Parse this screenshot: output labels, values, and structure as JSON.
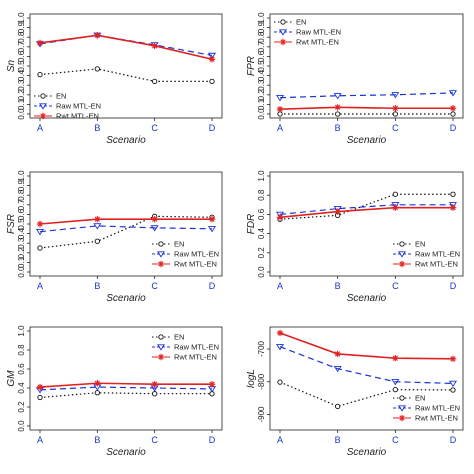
{
  "chart_data": [
    {
      "type": "line",
      "ylabel": "Sn",
      "xlabel": "Scenario",
      "categories": [
        "A",
        "B",
        "C",
        "D"
      ],
      "ylim": [
        0,
        1.0
      ],
      "yticks": [
        "0.0",
        "0.1",
        "0.2",
        "0.3",
        "0.4",
        "0.5",
        "0.6",
        "0.7",
        "0.8",
        "0.9",
        "1.0"
      ],
      "legend": "middle-left",
      "series": [
        {
          "name": "EN",
          "values": [
            0.41,
            0.47,
            0.34,
            0.34
          ]
        },
        {
          "name": "Raw MTL-EN",
          "values": [
            0.73,
            0.82,
            0.72,
            0.61
          ]
        },
        {
          "name": "Rwt MTL-EN",
          "values": [
            0.74,
            0.82,
            0.71,
            0.57
          ]
        }
      ]
    },
    {
      "type": "line",
      "ylabel": "FPR",
      "xlabel": "Scenario",
      "categories": [
        "A",
        "B",
        "C",
        "D"
      ],
      "ylim": [
        0,
        1.0
      ],
      "yticks": [
        "0.0",
        "0.1",
        "0.2",
        "0.3",
        "0.4",
        "0.5",
        "0.6",
        "0.7",
        "0.8",
        "0.9",
        "1.0"
      ],
      "legend": "top-left",
      "series": [
        {
          "name": "EN",
          "values": [
            0.0,
            0.0,
            0.0,
            0.0
          ]
        },
        {
          "name": "Raw MTL-EN",
          "values": [
            0.17,
            0.19,
            0.2,
            0.22
          ]
        },
        {
          "name": "Rwt MTL-EN",
          "values": [
            0.05,
            0.07,
            0.06,
            0.06
          ]
        }
      ]
    },
    {
      "type": "line",
      "ylabel": "FSR",
      "xlabel": "Scenario",
      "categories": [
        "A",
        "B",
        "C",
        "D"
      ],
      "ylim": [
        0,
        1.0
      ],
      "yticks": [
        "0.0",
        "0.1",
        "0.2",
        "0.3",
        "0.4",
        "0.5",
        "0.6",
        "0.7",
        "0.8",
        "0.9",
        "1.0"
      ],
      "legend": "bottom-right",
      "series": [
        {
          "name": "EN",
          "values": [
            0.25,
            0.32,
            0.58,
            0.57
          ]
        },
        {
          "name": "Raw MTL-EN",
          "values": [
            0.42,
            0.48,
            0.46,
            0.45
          ]
        },
        {
          "name": "Rwt MTL-EN",
          "values": [
            0.5,
            0.55,
            0.55,
            0.55
          ]
        }
      ]
    },
    {
      "type": "line",
      "ylabel": "FDR",
      "xlabel": "Scenario",
      "categories": [
        "A",
        "B",
        "C",
        "D"
      ],
      "ylim": [
        0,
        1.0
      ],
      "yticks": [
        "0.0",
        "0.2",
        "0.4",
        "0.6",
        "0.8",
        "1.0"
      ],
      "legend": "bottom-right",
      "series": [
        {
          "name": "EN",
          "values": [
            0.55,
            0.59,
            0.81,
            0.81
          ]
        },
        {
          "name": "Raw MTL-EN",
          "values": [
            0.6,
            0.66,
            0.7,
            0.7
          ]
        },
        {
          "name": "Rwt MTL-EN",
          "values": [
            0.57,
            0.63,
            0.67,
            0.67
          ]
        }
      ]
    },
    {
      "type": "line",
      "ylabel": "GM",
      "xlabel": "Scenario",
      "categories": [
        "A",
        "B",
        "C",
        "D"
      ],
      "ylim": [
        0,
        1.0
      ],
      "yticks": [
        "0.0",
        "0.2",
        "0.4",
        "0.6",
        "0.8",
        "1.0"
      ],
      "legend": "top-right",
      "series": [
        {
          "name": "EN",
          "values": [
            0.3,
            0.35,
            0.34,
            0.34
          ]
        },
        {
          "name": "Raw MTL-EN",
          "values": [
            0.38,
            0.41,
            0.4,
            0.39
          ]
        },
        {
          "name": "Rwt MTL-EN",
          "values": [
            0.41,
            0.45,
            0.44,
            0.44
          ]
        }
      ]
    },
    {
      "type": "line",
      "ylabel": "logL",
      "xlabel": "Scenario",
      "categories": [
        "A",
        "B",
        "C",
        "D"
      ],
      "ylim": [
        -935,
        -645
      ],
      "yticks": [
        "-900",
        "-800",
        "-700"
      ],
      "ytick_values": [
        -900,
        -800,
        -700
      ],
      "legend": "bottom-right",
      "series": [
        {
          "name": "EN",
          "values": [
            -801,
            -875,
            -824,
            -825
          ]
        },
        {
          "name": "Raw MTL-EN",
          "values": [
            -693,
            -760,
            -800,
            -805
          ]
        },
        {
          "name": "Rwt MTL-EN",
          "values": [
            -651,
            -715,
            -728,
            -730
          ]
        }
      ]
    }
  ],
  "styles": {
    "EN": {
      "color": "#111111",
      "dash": "1.5,2.5",
      "marker": "circle"
    },
    "Raw MTL-EN": {
      "color": "#1a33d6",
      "dash": "6,4",
      "marker": "triangle-down"
    },
    "Rwt MTL-EN": {
      "color": "#e02222",
      "dash": "",
      "marker": "star"
    }
  }
}
